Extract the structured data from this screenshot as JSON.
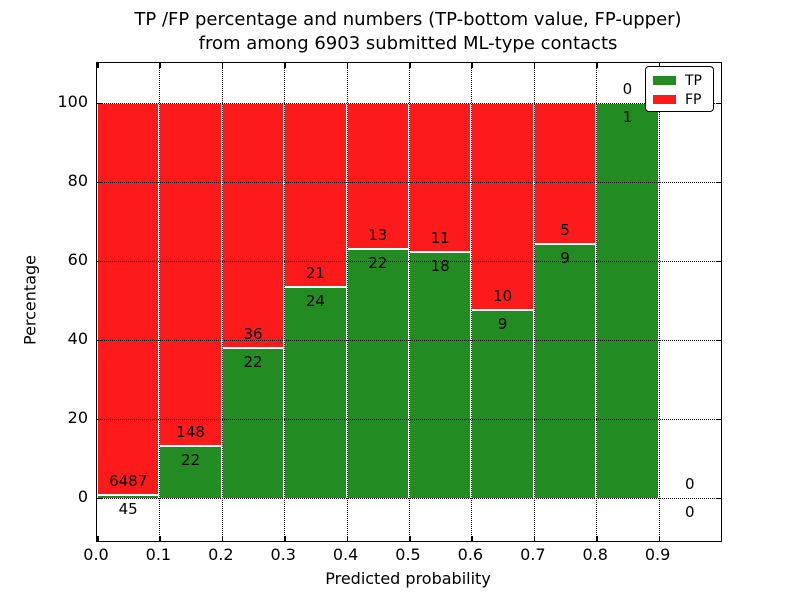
{
  "figure": {
    "title_line1": "TP /FP percentage and numbers (TP-bottom value, FP-upper)",
    "title_line2": "from among 6903 submitted ML-type contacts"
  },
  "chart_data": {
    "type": "bar",
    "stacked": true,
    "title": "TP /FP percentage and numbers (TP-bottom value, FP-upper) from among 6903 submitted ML-type contacts",
    "xlabel": "Predicted probability",
    "ylabel": "Percentage",
    "xlim": [
      0,
      1.0
    ],
    "ylim": [
      -11,
      110
    ],
    "bin_width": 0.1,
    "grid": true,
    "x_ticks": [
      {
        "value": 0.0,
        "label": "0.0"
      },
      {
        "value": 0.1,
        "label": "0.1"
      },
      {
        "value": 0.2,
        "label": "0.2"
      },
      {
        "value": 0.3,
        "label": "0.3"
      },
      {
        "value": 0.4,
        "label": "0.4"
      },
      {
        "value": 0.5,
        "label": "0.5"
      },
      {
        "value": 0.6,
        "label": "0.6"
      },
      {
        "value": 0.7,
        "label": "0.7"
      },
      {
        "value": 0.8,
        "label": "0.8"
      },
      {
        "value": 0.9,
        "label": "0.9"
      }
    ],
    "y_ticks": [
      {
        "value": 0,
        "label": "0"
      },
      {
        "value": 20,
        "label": "20"
      },
      {
        "value": 40,
        "label": "40"
      },
      {
        "value": 60,
        "label": "60"
      },
      {
        "value": 80,
        "label": "80"
      },
      {
        "value": 100,
        "label": "100"
      }
    ],
    "bins": [
      {
        "x_start": 0.0,
        "x_end": 0.1,
        "tp_count": 45,
        "fp_count": 6487,
        "tp_label": "45",
        "fp_label": "6487"
      },
      {
        "x_start": 0.1,
        "x_end": 0.2,
        "tp_count": 22,
        "fp_count": 148,
        "tp_label": "22",
        "fp_label": "148"
      },
      {
        "x_start": 0.2,
        "x_end": 0.3,
        "tp_count": 22,
        "fp_count": 36,
        "tp_label": "22",
        "fp_label": "36"
      },
      {
        "x_start": 0.3,
        "x_end": 0.4,
        "tp_count": 24,
        "fp_count": 21,
        "tp_label": "24",
        "fp_label": "21"
      },
      {
        "x_start": 0.4,
        "x_end": 0.5,
        "tp_count": 22,
        "fp_count": 13,
        "tp_label": "22",
        "fp_label": "13"
      },
      {
        "x_start": 0.5,
        "x_end": 0.6,
        "tp_count": 18,
        "fp_count": 11,
        "tp_label": "18",
        "fp_label": "11"
      },
      {
        "x_start": 0.6,
        "x_end": 0.7,
        "tp_count": 9,
        "fp_count": 10,
        "tp_label": "9",
        "fp_label": "10"
      },
      {
        "x_start": 0.7,
        "x_end": 0.8,
        "tp_count": 9,
        "fp_count": 5,
        "tp_label": "9",
        "fp_label": "5"
      },
      {
        "x_start": 0.8,
        "x_end": 0.9,
        "tp_count": 1,
        "fp_count": 0,
        "tp_label": "1",
        "fp_label": "0"
      },
      {
        "x_start": 0.9,
        "x_end": 1.0,
        "tp_count": 0,
        "fp_count": 0,
        "tp_label": "0",
        "fp_label": "0"
      }
    ],
    "legend": [
      {
        "label": "TP",
        "color": "#228b22"
      },
      {
        "label": "FP",
        "color": "#fd1a1a"
      }
    ],
    "legend_position": "upper right",
    "colors": {
      "tp": "#228b22",
      "fp": "#fd1a1a",
      "grid": "#000000"
    }
  }
}
